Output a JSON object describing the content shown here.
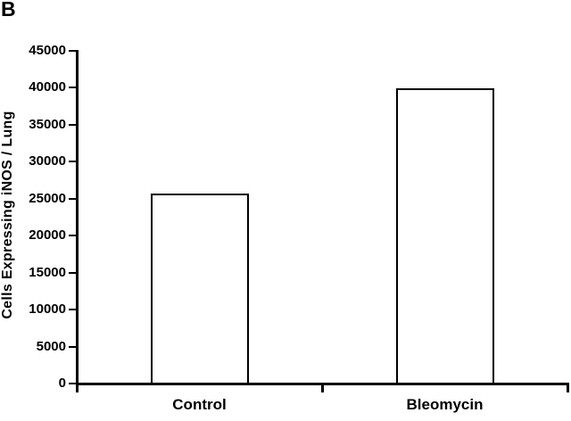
{
  "figure_label": "B",
  "colors": {
    "ink": "#000000",
    "bar_fill": "#ffffff",
    "background": "#ffffff"
  },
  "chart_data": {
    "type": "bar",
    "title": "",
    "categories": [
      "Control",
      "Bleomycin"
    ],
    "values": [
      25700,
      39900
    ],
    "ylabel": "Cells Expressing iNOS / Lung",
    "xlabel": "",
    "ylim": [
      0,
      45000
    ],
    "ytick_step": 5000,
    "ytick_labels": [
      "0",
      "5000",
      "10000",
      "15000",
      "20000",
      "25000",
      "30000",
      "35000",
      "40000",
      "45000"
    ],
    "grid": false,
    "legend": "none",
    "bar_fill": "#ffffff",
    "bar_border": "#000000",
    "axis_color": "#000000"
  }
}
